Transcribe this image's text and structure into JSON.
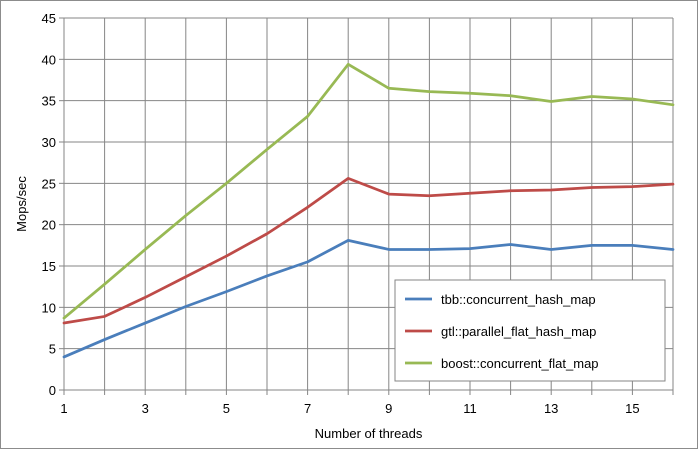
{
  "chart_data": {
    "type": "line",
    "title": "",
    "xlabel": "Number of threads",
    "ylabel": "Mops/sec",
    "xlim": [
      1,
      16
    ],
    "ylim": [
      0,
      45
    ],
    "x_ticks": [
      1,
      3,
      5,
      7,
      9,
      11,
      13,
      15
    ],
    "y_ticks": [
      0,
      5,
      10,
      15,
      20,
      25,
      30,
      35,
      40,
      45
    ],
    "grid": true,
    "legend_position": "bottom-right",
    "x": [
      1,
      2,
      3,
      4,
      5,
      6,
      7,
      8,
      9,
      10,
      11,
      12,
      13,
      14,
      15,
      16
    ],
    "series": [
      {
        "name": "tbb::concurrent_hash_map",
        "color": "#4a7ebb",
        "values": [
          4.0,
          6.1,
          8.1,
          10.1,
          11.9,
          13.8,
          15.5,
          18.1,
          17.0,
          17.0,
          17.1,
          17.6,
          17.0,
          17.5,
          17.5,
          17.0
        ]
      },
      {
        "name": "gtl::parallel_flat_hash_map",
        "color": "#be4b48",
        "values": [
          8.1,
          8.9,
          11.2,
          13.7,
          16.2,
          18.9,
          22.1,
          25.6,
          23.7,
          23.5,
          23.8,
          24.1,
          24.2,
          24.5,
          24.6,
          24.9
        ]
      },
      {
        "name": "boost::concurrent_flat_map",
        "color": "#98b954",
        "values": [
          8.7,
          12.8,
          17.0,
          21.1,
          25.0,
          29.1,
          33.1,
          39.4,
          36.5,
          36.1,
          35.9,
          35.6,
          34.9,
          35.5,
          35.2,
          34.5
        ]
      }
    ]
  }
}
